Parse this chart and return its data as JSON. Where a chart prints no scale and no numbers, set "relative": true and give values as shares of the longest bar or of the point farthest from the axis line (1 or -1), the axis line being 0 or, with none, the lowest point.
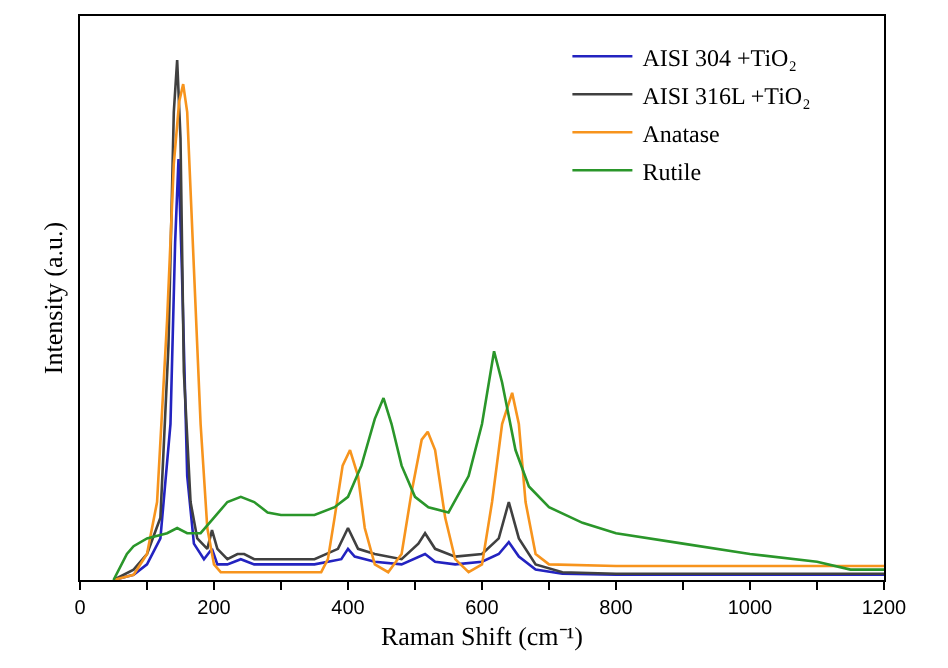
{
  "chart_data": {
    "type": "line",
    "xlabel": "Raman Shift (cm⁻¹)",
    "ylabel": "Intensity (a.u.)",
    "relative": true,
    "xlim": [
      0,
      1200
    ],
    "xticks": [
      0,
      {
        "value": 100,
        "label": null
      },
      200,
      {
        "value": 300,
        "label": null
      },
      400,
      {
        "value": 500,
        "label": null
      },
      600,
      {
        "value": 700,
        "label": null
      },
      800,
      {
        "value": 900,
        "label": null
      },
      1000,
      {
        "value": 1100,
        "label": null
      },
      1200
    ],
    "grid": false,
    "legend": "top right",
    "marker": "none",
    "line_style": "solid",
    "series": [
      {
        "name": "AISI 304 +TiO₂",
        "color": "#2323c0",
        "x": [
          50,
          80,
          100,
          120,
          135,
          142,
          147,
          152,
          160,
          170,
          185,
          197,
          205,
          220,
          240,
          260,
          300,
          350,
          390,
          400,
          410,
          440,
          480,
          515,
          530,
          560,
          600,
          625,
          640,
          655,
          680,
          720,
          800,
          1000,
          1200
        ],
        "values": [
          0,
          0.01,
          0.03,
          0.08,
          0.3,
          0.65,
          0.81,
          0.6,
          0.2,
          0.07,
          0.04,
          0.06,
          0.03,
          0.03,
          0.04,
          0.03,
          0.03,
          0.03,
          0.04,
          0.06,
          0.045,
          0.035,
          0.03,
          0.05,
          0.035,
          0.03,
          0.035,
          0.05,
          0.073,
          0.045,
          0.02,
          0.012,
          0.01,
          0.01,
          0.01
        ]
      },
      {
        "name": "AISI 316L +TiO₂",
        "color": "#404040",
        "x": [
          50,
          80,
          100,
          120,
          132,
          140,
          145,
          150,
          155,
          165,
          175,
          190,
          197,
          205,
          220,
          235,
          245,
          260,
          300,
          350,
          385,
          400,
          415,
          440,
          480,
          505,
          515,
          530,
          560,
          600,
          625,
          640,
          655,
          680,
          720,
          800,
          1000,
          1200
        ],
        "values": [
          0,
          0.02,
          0.05,
          0.12,
          0.45,
          0.9,
          1.0,
          0.85,
          0.4,
          0.15,
          0.08,
          0.06,
          0.096,
          0.06,
          0.04,
          0.05,
          0.05,
          0.04,
          0.04,
          0.04,
          0.06,
          0.1,
          0.06,
          0.05,
          0.04,
          0.07,
          0.09,
          0.06,
          0.045,
          0.05,
          0.08,
          0.15,
          0.08,
          0.03,
          0.015,
          0.012,
          0.012,
          0.012
        ]
      },
      {
        "name": "Anatase",
        "color": "#f7941d",
        "x": [
          50,
          80,
          100,
          115,
          130,
          140,
          148,
          154,
          160,
          170,
          180,
          190,
          200,
          210,
          220,
          360,
          370,
          380,
          392,
          403,
          415,
          425,
          440,
          460,
          480,
          495,
          510,
          519,
          530,
          545,
          560,
          580,
          600,
          615,
          630,
          645,
          655,
          665,
          680,
          700,
          800,
          1000,
          1200
        ],
        "values": [
          0,
          0.01,
          0.05,
          0.15,
          0.5,
          0.8,
          0.92,
          0.954,
          0.9,
          0.6,
          0.3,
          0.1,
          0.03,
          0.015,
          0.015,
          0.015,
          0.04,
          0.12,
          0.22,
          0.25,
          0.2,
          0.1,
          0.03,
          0.015,
          0.05,
          0.17,
          0.27,
          0.285,
          0.25,
          0.12,
          0.04,
          0.015,
          0.03,
          0.15,
          0.3,
          0.36,
          0.3,
          0.15,
          0.05,
          0.03,
          0.027,
          0.027,
          0.027
        ]
      },
      {
        "name": "Rutile",
        "color": "#2a962a",
        "x": [
          50,
          70,
          80,
          100,
          130,
          145,
          160,
          180,
          200,
          220,
          240,
          260,
          280,
          300,
          350,
          380,
          400,
          420,
          440,
          453,
          465,
          480,
          500,
          520,
          550,
          580,
          600,
          618,
          630,
          650,
          670,
          700,
          750,
          800,
          900,
          1000,
          1100,
          1150,
          1200
        ],
        "values": [
          0,
          0.05,
          0.065,
          0.08,
          0.09,
          0.1,
          0.09,
          0.09,
          0.12,
          0.15,
          0.16,
          0.15,
          0.13,
          0.125,
          0.125,
          0.14,
          0.16,
          0.22,
          0.31,
          0.35,
          0.3,
          0.22,
          0.16,
          0.14,
          0.13,
          0.2,
          0.3,
          0.44,
          0.38,
          0.25,
          0.18,
          0.14,
          0.11,
          0.09,
          0.07,
          0.05,
          0.035,
          0.02,
          0.02
        ]
      }
    ]
  }
}
